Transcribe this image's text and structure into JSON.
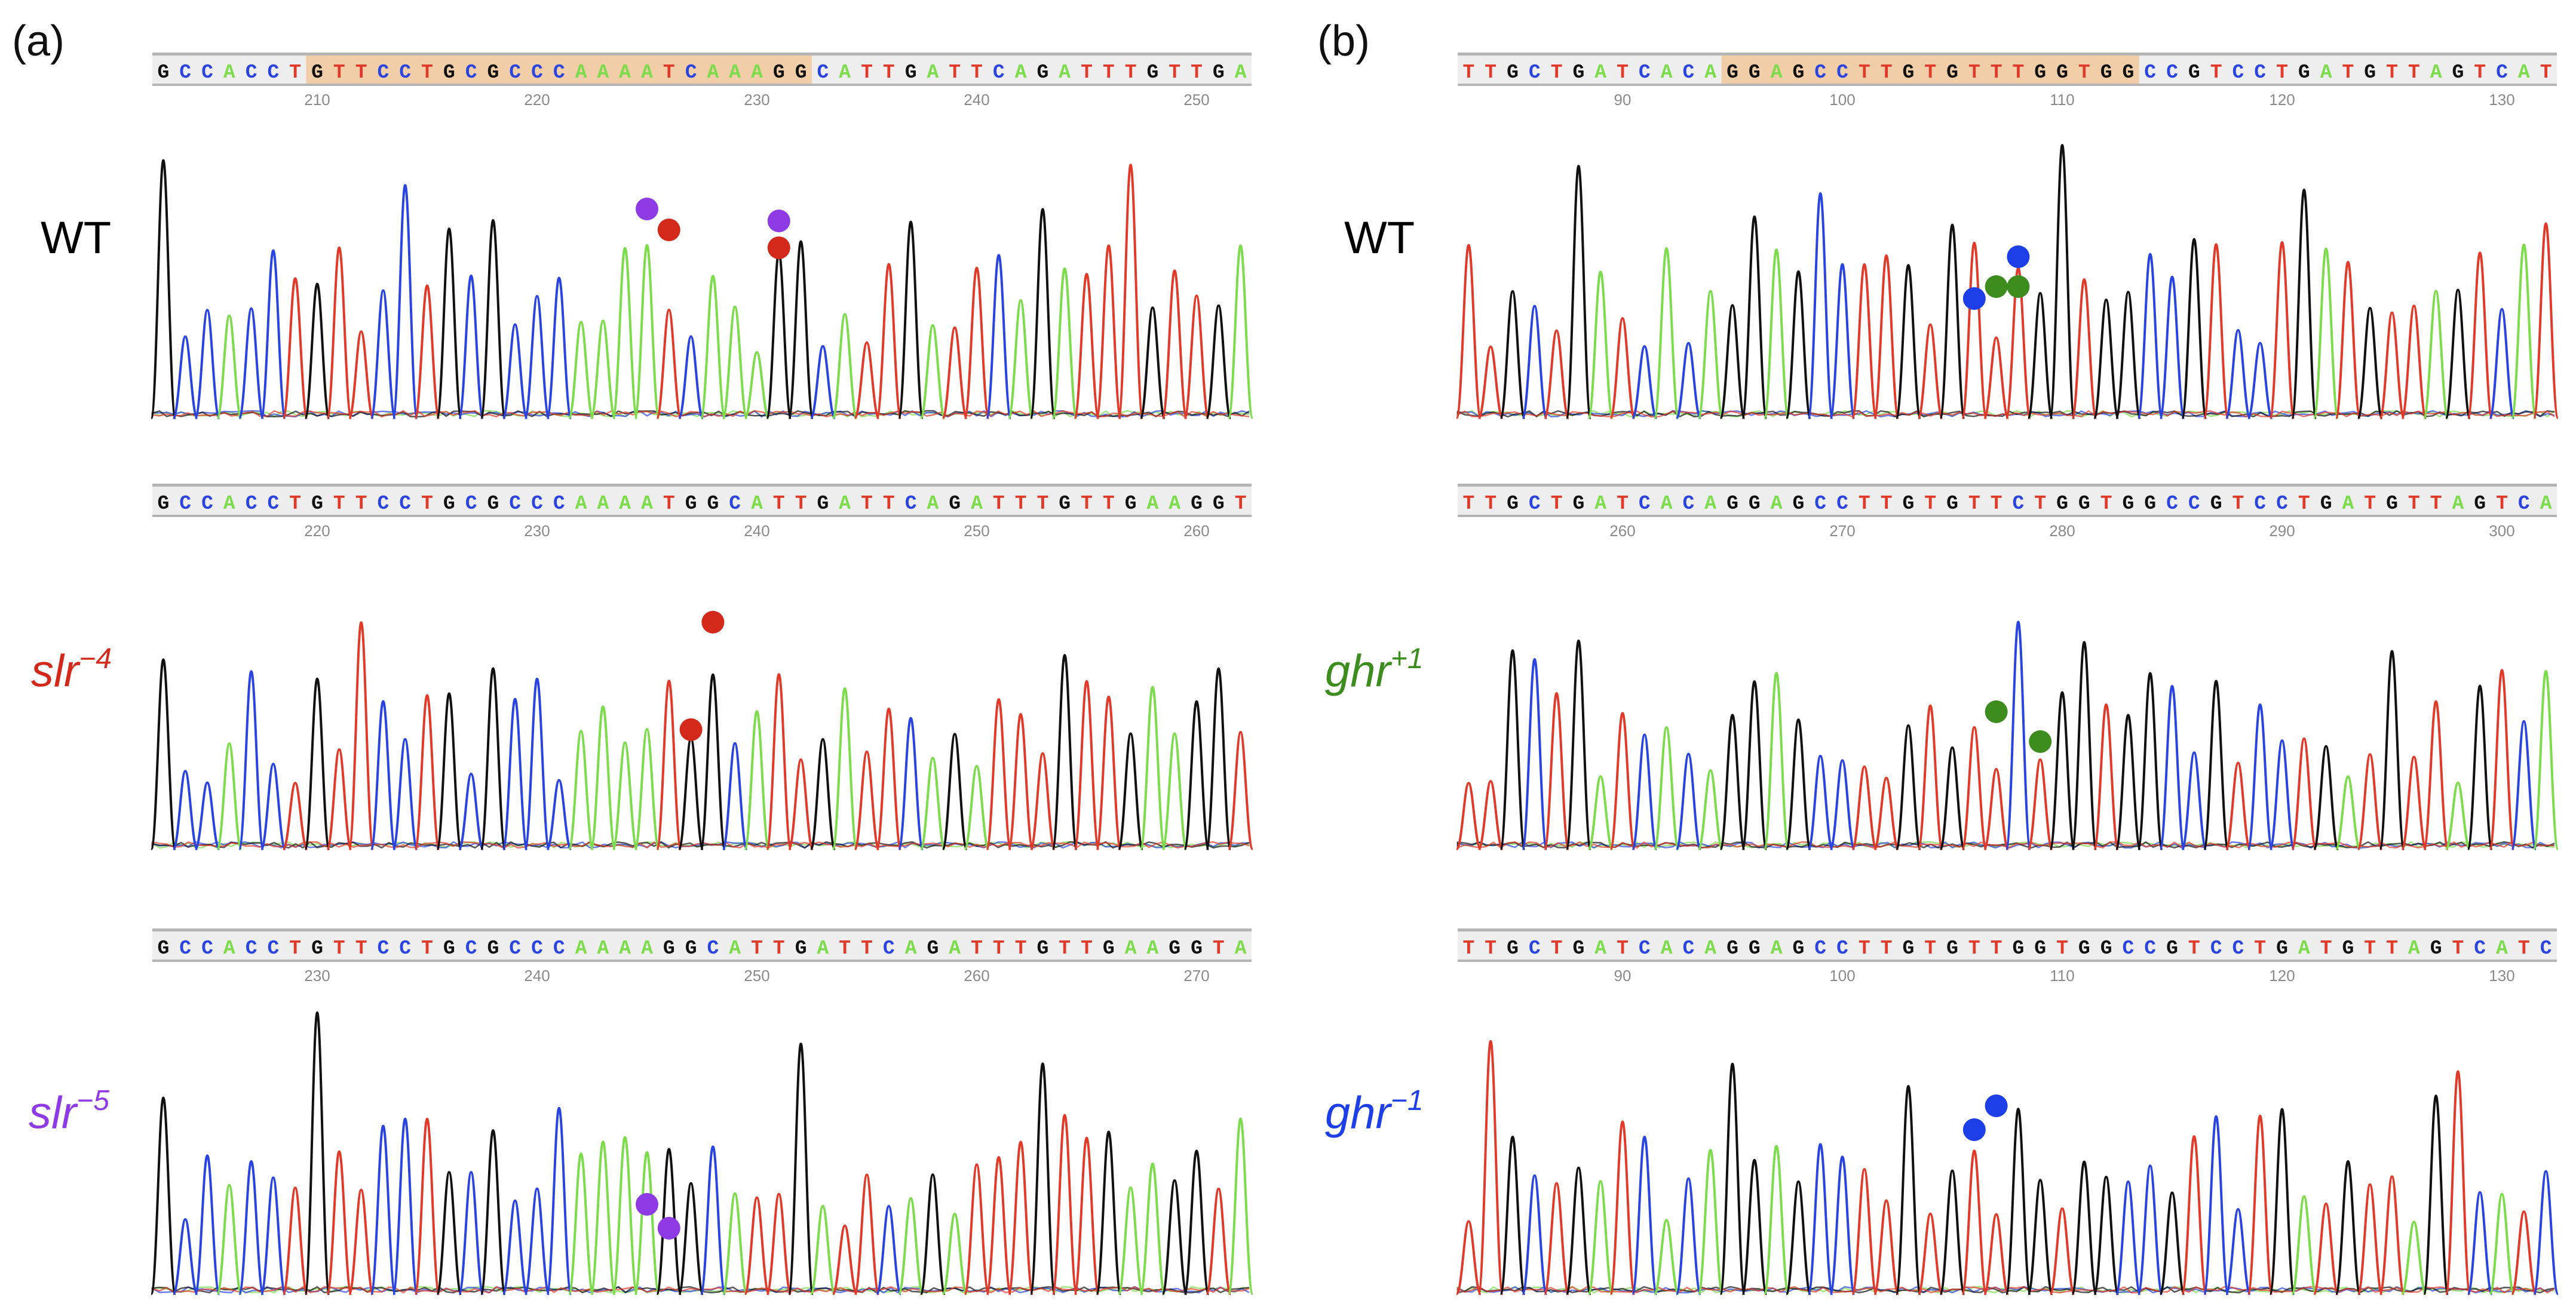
{
  "colors": {
    "A": "#7cdc4c",
    "C": "#2a44e0",
    "G": "#111111",
    "T": "#e03b2a",
    "highlight": "#f1cda8",
    "purple": "#8e3be6",
    "red": "#d3291b",
    "blue": "#1d3fe8",
    "green": "#3c8c1e"
  },
  "panels": [
    {
      "label": "(a)"
    },
    {
      "label": "(b)"
    }
  ],
  "traces": [
    {
      "id": "a-wt",
      "label_name": "WT",
      "label_sup": "",
      "label_color": "#111111",
      "sequence": "GCCACCTGTTCCTGCGCCCAAAATCAAAGGCATTGATTCAGATTTGTTGA",
      "ticks": [
        "210",
        "220",
        "230",
        "240",
        "250"
      ],
      "highlight": [
        7,
        30
      ],
      "dots": [
        {
          "base": 22,
          "level": 0.7,
          "color": "purple"
        },
        {
          "base": 23,
          "level": 0.63,
          "color": "red"
        },
        {
          "base": 28,
          "level": 0.66,
          "color": "purple"
        },
        {
          "base": 28,
          "level": 0.57,
          "color": "red"
        }
      ]
    },
    {
      "id": "a-slr4",
      "label_name": "slr",
      "label_sup": "−4",
      "label_color": "#d3291b",
      "sequence": "GCCACCTGTTCCTGCGCCCAAAATGGCATTGATTCAGATTTGTTGAAGGT",
      "ticks": [
        "220",
        "230",
        "240",
        "250",
        "260"
      ],
      "highlight": null,
      "dots": [
        {
          "base": 24,
          "level": 0.4,
          "color": "red"
        },
        {
          "base": 25,
          "level": 0.76,
          "color": "red"
        }
      ]
    },
    {
      "id": "a-slr5",
      "label_name": "slr",
      "label_sup": "−5",
      "label_color": "#8e3be6",
      "sequence": "GCCACCTGTTCCTGCGCCCAAAAGGCATTGATTCAGATTTGTTGAAGGTA",
      "ticks": [
        "230",
        "240",
        "250",
        "260",
        "270"
      ],
      "highlight": null,
      "dots": [
        {
          "base": 22,
          "level": 0.3,
          "color": "purple"
        },
        {
          "base": 23,
          "level": 0.22,
          "color": "purple"
        }
      ]
    },
    {
      "id": "b-wt",
      "label_name": "WT",
      "label_sup": "",
      "label_color": "#111111",
      "sequence": "TTGCTGATCACAGGAGCCTTGTGTTTGGTGGCCGTCCTGATGTTAGTCAT",
      "ticks": [
        "90",
        "100",
        "110",
        "120",
        "130"
      ],
      "highlight": [
        12,
        31
      ],
      "dots": [
        {
          "base": 23,
          "level": 0.4,
          "color": "blue"
        },
        {
          "base": 24,
          "level": 0.44,
          "color": "green"
        },
        {
          "base": 25,
          "level": 0.44,
          "color": "green"
        },
        {
          "base": 25,
          "level": 0.54,
          "color": "blue"
        }
      ]
    },
    {
      "id": "b-ghr1p",
      "label_name": "ghr",
      "label_sup": "+1",
      "label_color": "#3c8c1e",
      "sequence": "TTGCTGATCACAGGAGCCTTGTGTTCTGGTGGCCGTCCTGATGTTAGTCA",
      "ticks": [
        "260",
        "270",
        "280",
        "290",
        "300"
      ],
      "highlight": null,
      "dots": [
        {
          "base": 24,
          "level": 0.46,
          "color": "green"
        },
        {
          "base": 26,
          "level": 0.36,
          "color": "green"
        }
      ]
    },
    {
      "id": "b-ghr1m",
      "label_name": "ghr",
      "label_sup": "−1",
      "label_color": "#1d3fe8",
      "sequence": "TTGCTGATCACAGGAGCCTTGTGTTGGTGGCCGTCCTGATGTTAGTCATC",
      "ticks": [
        "90",
        "100",
        "110",
        "120",
        "130"
      ],
      "highlight": null,
      "dots": [
        {
          "base": 23,
          "level": 0.55,
          "color": "blue"
        },
        {
          "base": 24,
          "level": 0.63,
          "color": "blue"
        }
      ]
    }
  ]
}
